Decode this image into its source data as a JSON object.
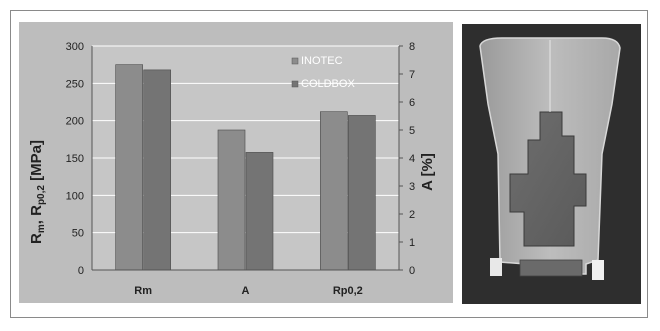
{
  "chart_data": {
    "type": "bar",
    "categories": [
      "Rm",
      "A",
      "Rp0,2"
    ],
    "series": [
      {
        "name": "INOTEC",
        "values": [
          275,
          5,
          212
        ],
        "axis": [
          "left",
          "right",
          "left"
        ]
      },
      {
        "name": "COLDBOX",
        "values": [
          268,
          4.2,
          207
        ],
        "axis": [
          "left",
          "right",
          "left"
        ]
      }
    ],
    "y_left": {
      "label_main": "R",
      "label_sub1": "m",
      "label_sep": ", R",
      "label_sub2": "p0,2",
      "label_unit": " [MPa]",
      "range": [
        0,
        300
      ],
      "ticks": [
        "0",
        "50",
        "100",
        "150",
        "200",
        "250",
        "300"
      ]
    },
    "y_right": {
      "label": "A [%]",
      "range": [
        0,
        8
      ],
      "ticks": [
        "0",
        "1",
        "2",
        "3",
        "4",
        "5",
        "6",
        "7",
        "8"
      ]
    },
    "grid": true,
    "legend": "top-right",
    "colors": {
      "INOTEC": "#8c8c8c",
      "COLDBOX": "#747474",
      "plot_bg": "#c4c4c4",
      "outer_bg": "#bcbcbc"
    }
  }
}
